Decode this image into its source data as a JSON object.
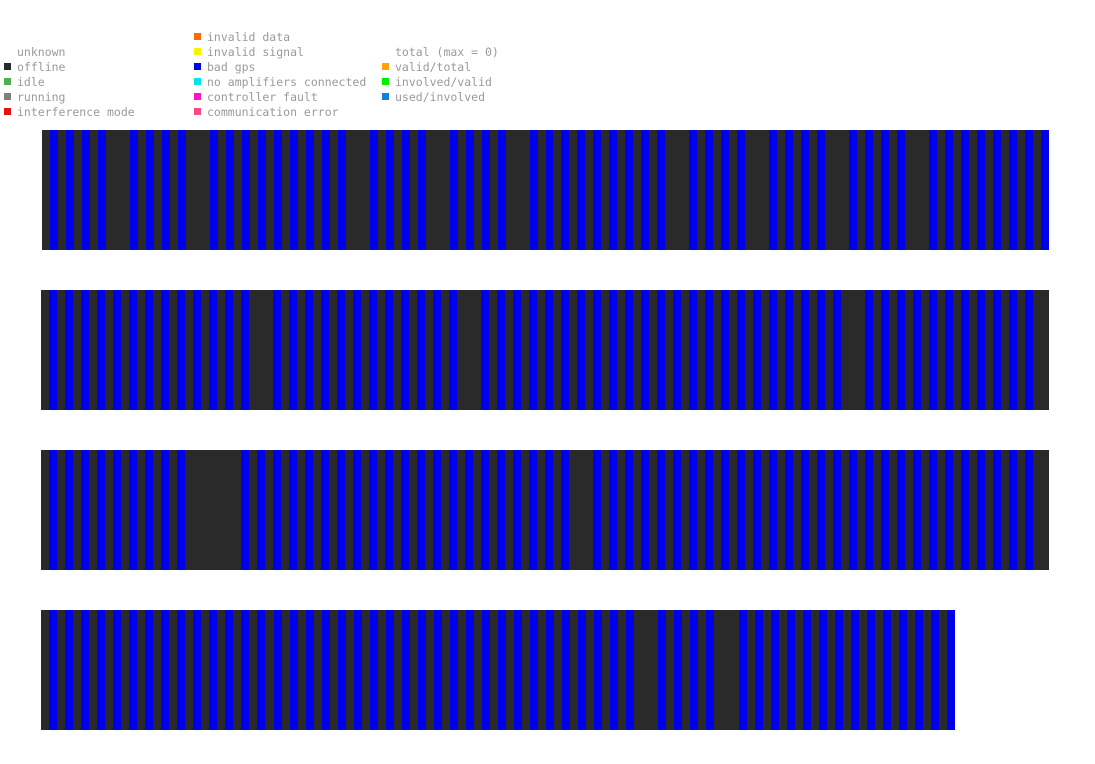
{
  "legend": {
    "status": [
      {
        "label": "unknown",
        "color": ""
      },
      {
        "label": "offline",
        "color": "#2a2a2a"
      },
      {
        "label": "idle",
        "color": "#4caf50"
      },
      {
        "label": "running",
        "color": "#808080"
      },
      {
        "label": "interference mode",
        "color": "#e81010"
      }
    ],
    "errors": [
      {
        "label": "invalid data",
        "color": "#ff6a00"
      },
      {
        "label": "invalid signal",
        "color": "#f5f500"
      },
      {
        "label": "bad gps",
        "color": "#0000ee"
      },
      {
        "label": "no amplifiers connected",
        "color": "#00e5e5"
      },
      {
        "label": "controller fault",
        "color": "#ff10d0"
      },
      {
        "label": "communication error",
        "color": "#ff4488"
      }
    ],
    "totals": [
      {
        "label": "total (max = 0)",
        "color": ""
      },
      {
        "label": "valid/total",
        "color": "#ffa500"
      },
      {
        "label": "involved/valid",
        "color": "#00ee00"
      },
      {
        "label": "used/involved",
        "color": "#0a84e0"
      }
    ]
  },
  "chart_data": {
    "type": "heatmap",
    "colors": {
      "bad_gps": "#0000ee",
      "offline": "#2a2a2a"
    },
    "rows": [
      {
        "stations": 126,
        "offline": [
          0,
          2,
          4,
          6,
          8,
          10,
          12,
          14,
          16,
          18,
          20,
          22,
          24,
          26,
          28,
          30,
          32,
          34,
          36,
          38,
          40,
          42,
          44,
          46,
          48,
          50,
          52,
          54,
          56,
          58,
          60,
          62,
          64,
          66,
          68,
          70,
          72,
          74,
          76,
          78,
          80,
          82,
          84,
          86,
          88,
          90,
          92,
          94,
          96,
          98,
          100,
          102,
          104,
          106,
          108,
          110,
          112,
          114,
          116,
          118,
          120,
          122,
          124,
          9,
          19,
          39,
          49,
          59,
          79,
          89,
          99,
          109
        ]
      },
      {
        "stations": 126,
        "offline": [
          0,
          2,
          4,
          6,
          8,
          10,
          12,
          14,
          16,
          18,
          20,
          22,
          24,
          26,
          28,
          30,
          32,
          34,
          36,
          38,
          40,
          42,
          44,
          46,
          48,
          50,
          52,
          54,
          56,
          58,
          60,
          62,
          64,
          66,
          68,
          70,
          72,
          74,
          76,
          78,
          80,
          82,
          84,
          86,
          88,
          90,
          92,
          94,
          96,
          98,
          100,
          102,
          104,
          106,
          108,
          110,
          112,
          114,
          116,
          118,
          120,
          122,
          124,
          27,
          53,
          101,
          125
        ]
      },
      {
        "stations": 126,
        "offline": [
          0,
          2,
          4,
          6,
          8,
          10,
          12,
          14,
          16,
          18,
          20,
          22,
          24,
          26,
          28,
          30,
          32,
          34,
          36,
          38,
          40,
          42,
          44,
          46,
          48,
          50,
          52,
          54,
          56,
          58,
          60,
          62,
          64,
          66,
          68,
          70,
          72,
          74,
          76,
          78,
          80,
          82,
          84,
          86,
          88,
          90,
          92,
          94,
          96,
          98,
          100,
          102,
          104,
          106,
          108,
          110,
          112,
          114,
          116,
          118,
          120,
          122,
          124,
          19,
          20,
          21,
          22,
          23,
          64,
          66,
          67,
          125
        ]
      },
      {
        "stations": 114,
        "offline": [
          0,
          2,
          4,
          6,
          8,
          10,
          12,
          14,
          16,
          18,
          20,
          22,
          24,
          26,
          28,
          30,
          32,
          34,
          36,
          38,
          40,
          42,
          44,
          46,
          48,
          50,
          52,
          54,
          56,
          58,
          60,
          62,
          64,
          66,
          68,
          70,
          72,
          74,
          76,
          78,
          80,
          82,
          84,
          86,
          88,
          90,
          92,
          94,
          96,
          98,
          100,
          102,
          104,
          106,
          108,
          110,
          112,
          75,
          85,
          102
        ]
      }
    ]
  }
}
